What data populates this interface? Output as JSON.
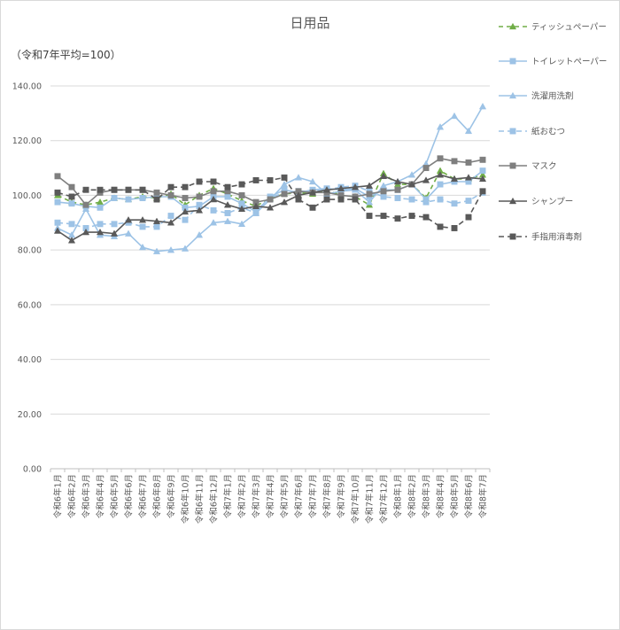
{
  "chart_data": {
    "type": "line",
    "title": "日用品",
    "subtitle": "（令和7年平均=100）",
    "ylim": [
      0,
      140
    ],
    "yticks": [
      "0.00",
      "20.00",
      "40.00",
      "60.00",
      "80.00",
      "100.00",
      "120.00",
      "140.00"
    ],
    "grid": true,
    "legend_position": "right",
    "categories": [
      "令和6年1月",
      "令和6年2月",
      "令和6年3月",
      "令和6年4月",
      "令和6年5月",
      "令和6年6月",
      "令和6年7月",
      "令和6年8月",
      "令和6年9月",
      "令和6年10月",
      "令和6年11月",
      "令和6年12月",
      "令和7年1月",
      "令和7年2月",
      "令和7年3月",
      "令和7年4月",
      "令和7年5月",
      "令和7年6月",
      "令和7年7月",
      "令和7年8月",
      "令和7年9月",
      "令和7年10月",
      "令和7年11月",
      "令和7年12月",
      "令和8年1月",
      "令和8年2月",
      "令和8年3月",
      "令和8年4月",
      "令和8年5月",
      "令和8年6月",
      "令和8年7月"
    ],
    "series": [
      {
        "name": "ティッシュペーパー",
        "color": "#70ad47",
        "dash": "5,4",
        "marker": "triangle",
        "values": [
          100.0,
          97.5,
          96.5,
          97.5,
          99.0,
          98.5,
          99.5,
          99.0,
          100.5,
          96.5,
          100.0,
          102.5,
          100.5,
          98.0,
          96.0,
          99.0,
          100.5,
          101.0,
          100.5,
          102.0,
          100.0,
          99.5,
          96.5,
          108.0,
          104.0,
          104.0,
          99.0,
          109.0,
          106.0,
          106.0,
          107.5
        ]
      },
      {
        "name": "トイレットペーパー",
        "color": "#9dc3e6",
        "dash": "",
        "marker": "square",
        "values": [
          97.5,
          97.0,
          96.0,
          95.5,
          99.0,
          98.5,
          99.0,
          99.5,
          99.5,
          95.5,
          96.0,
          99.5,
          99.5,
          97.0,
          94.0,
          99.5,
          102.0,
          101.0,
          102.0,
          102.5,
          102.0,
          102.5,
          99.5,
          102.0,
          102.0,
          104.0,
          98.5,
          104.0,
          105.0,
          105.0,
          109.0
        ]
      },
      {
        "name": "洗濯用洗剤",
        "color": "#9dc3e6",
        "dash": "",
        "marker": "triangle",
        "values": [
          88.0,
          85.5,
          95.0,
          85.5,
          85.0,
          86.0,
          81.0,
          79.5,
          80.0,
          80.5,
          85.5,
          90.0,
          90.5,
          89.5,
          93.5,
          98.5,
          104.0,
          106.5,
          105.0,
          100.5,
          101.5,
          102.0,
          97.5,
          103.5,
          105.0,
          107.5,
          111.5,
          125.0,
          129.0,
          123.5,
          132.5
        ]
      },
      {
        "name": "紙おむつ",
        "color": "#9dc3e6",
        "dash": "6,4",
        "marker": "square",
        "values": [
          90.0,
          89.5,
          88.0,
          89.5,
          89.5,
          90.0,
          88.5,
          88.5,
          92.5,
          91.0,
          96.5,
          94.5,
          93.5,
          95.5,
          93.5,
          99.0,
          101.0,
          101.5,
          101.5,
          102.0,
          103.0,
          103.5,
          101.5,
          99.5,
          99.0,
          98.5,
          97.5,
          98.5,
          97.0,
          98.0,
          101.0
        ]
      },
      {
        "name": "マスク",
        "color": "#7f7f7f",
        "dash": "",
        "marker": "square",
        "values": [
          107.0,
          103.0,
          96.5,
          101.0,
          102.0,
          102.0,
          102.0,
          101.0,
          100.0,
          99.0,
          99.5,
          101.5,
          101.5,
          100.0,
          97.5,
          98.5,
          100.5,
          101.5,
          101.0,
          101.0,
          100.0,
          99.5,
          100.5,
          101.5,
          102.0,
          104.0,
          110.0,
          113.5,
          112.5,
          112.0,
          113.0
        ]
      },
      {
        "name": "シャンプー",
        "color": "#595959",
        "dash": "",
        "marker": "triangle",
        "values": [
          87.0,
          83.5,
          86.5,
          86.5,
          86.0,
          91.0,
          91.0,
          90.5,
          90.0,
          94.0,
          94.5,
          98.5,
          96.5,
          95.0,
          96.0,
          95.5,
          97.5,
          100.0,
          101.0,
          102.0,
          102.5,
          103.0,
          103.5,
          107.0,
          105.0,
          104.0,
          105.5,
          107.5,
          106.0,
          106.5,
          106.0
        ]
      },
      {
        "name": "手指用消毒剤",
        "color": "#595959",
        "dash": "6,4",
        "marker": "square",
        "values": [
          101.0,
          99.5,
          102.0,
          102.0,
          102.0,
          102.0,
          102.0,
          98.5,
          103.0,
          103.0,
          105.0,
          105.0,
          103.0,
          104.0,
          105.5,
          105.5,
          106.5,
          98.5,
          95.5,
          98.5,
          98.5,
          98.5,
          92.5,
          92.5,
          91.5,
          92.5,
          92.0,
          88.5,
          88.0,
          92.0,
          101.5
        ]
      }
    ]
  }
}
